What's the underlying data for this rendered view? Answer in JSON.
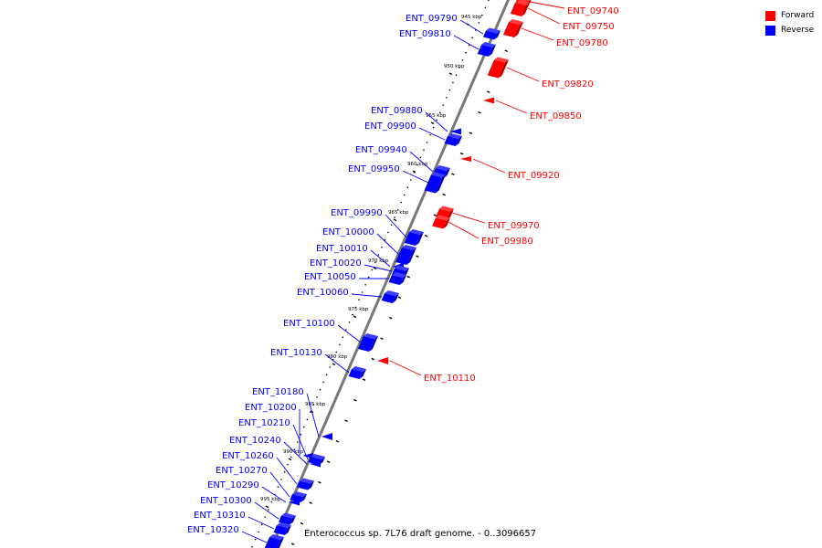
{
  "caption": "Enterococcus sp. 7L76 draft genome. - 0..3096657",
  "legend": [
    {
      "label": "Forward",
      "color": "#ff0000"
    },
    {
      "label": "Reverse",
      "color": "#0000ff"
    }
  ],
  "colors": {
    "forward": "#ff0000",
    "reverse": "#0000ff",
    "backbone": "#777777",
    "tick": "#000000"
  },
  "scale": {
    "unit": "kbp",
    "labels": [
      "945 kbp",
      "950 kbp",
      "955 kbp",
      "960 kbp",
      "965 kbp",
      "970 kbp",
      "975 kbp",
      "980 kbp",
      "985 kbp",
      "990 kbp",
      "995 kbp"
    ]
  },
  "genes": [
    {
      "name": "ENT_09740",
      "strand": "forward"
    },
    {
      "name": "ENT_09750",
      "strand": "forward"
    },
    {
      "name": "ENT_09780",
      "strand": "forward"
    },
    {
      "name": "ENT_09790",
      "strand": "reverse"
    },
    {
      "name": "ENT_09810",
      "strand": "reverse"
    },
    {
      "name": "ENT_09820",
      "strand": "forward"
    },
    {
      "name": "ENT_09850",
      "strand": "forward"
    },
    {
      "name": "ENT_09880",
      "strand": "reverse"
    },
    {
      "name": "ENT_09900",
      "strand": "reverse"
    },
    {
      "name": "ENT_09920",
      "strand": "forward"
    },
    {
      "name": "ENT_09940",
      "strand": "reverse"
    },
    {
      "name": "ENT_09950",
      "strand": "reverse"
    },
    {
      "name": "ENT_09970",
      "strand": "forward"
    },
    {
      "name": "ENT_09980",
      "strand": "forward"
    },
    {
      "name": "ENT_09990",
      "strand": "reverse"
    },
    {
      "name": "ENT_10000",
      "strand": "reverse"
    },
    {
      "name": "ENT_10010",
      "strand": "reverse"
    },
    {
      "name": "ENT_10020",
      "strand": "reverse"
    },
    {
      "name": "ENT_10050",
      "strand": "reverse"
    },
    {
      "name": "ENT_10060",
      "strand": "reverse"
    },
    {
      "name": "ENT_10100",
      "strand": "reverse"
    },
    {
      "name": "ENT_10110",
      "strand": "forward"
    },
    {
      "name": "ENT_10130",
      "strand": "reverse"
    },
    {
      "name": "ENT_10180",
      "strand": "reverse"
    },
    {
      "name": "ENT_10200",
      "strand": "reverse"
    },
    {
      "name": "ENT_10210",
      "strand": "reverse"
    },
    {
      "name": "ENT_10240",
      "strand": "reverse"
    },
    {
      "name": "ENT_10260",
      "strand": "reverse"
    },
    {
      "name": "ENT_10270",
      "strand": "reverse"
    },
    {
      "name": "ENT_10290",
      "strand": "reverse"
    },
    {
      "name": "ENT_10300",
      "strand": "reverse"
    },
    {
      "name": "ENT_10310",
      "strand": "reverse"
    },
    {
      "name": "ENT_10320",
      "strand": "reverse"
    }
  ]
}
